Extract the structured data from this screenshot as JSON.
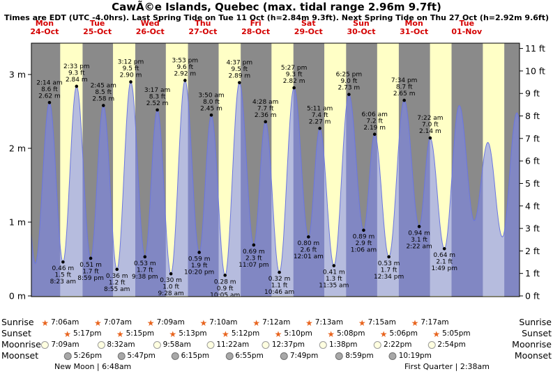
{
  "title": "CawÃ©e Islands, Quebec (max. tidal range 2.96m 9.7ft)",
  "subtitle": "Times are EDT (UTC -4.0hrs). Last Spring Tide on Tue 11 Oct (h=2.84m 9.3ft). Next Spring Tide on Thu 27 Oct (h=2.92m 9.6ft)",
  "colors": {
    "day_label": "#d40000",
    "night_band": "#8a8a8a",
    "day_band": "#ffffc6",
    "tide_fill": "rgba(122,133,242,0.55)",
    "tide_stroke": "#6b76e0",
    "moon_light": "#ffffe0",
    "moon_dark": "#a8a8a8",
    "star": "#e8641e"
  },
  "chart_data": {
    "type": "area",
    "title": "CawÃ©e Islands, Quebec tide curve",
    "days": [
      {
        "name": "Mon",
        "date": "24-Oct"
      },
      {
        "name": "Tue",
        "date": "25-Oct"
      },
      {
        "name": "Wed",
        "date": "26-Oct"
      },
      {
        "name": "Thu",
        "date": "27-Oct"
      },
      {
        "name": "Fri",
        "date": "28-Oct"
      },
      {
        "name": "Sat",
        "date": "29-Oct"
      },
      {
        "name": "Sun",
        "date": "30-Oct"
      },
      {
        "name": "Mon",
        "date": "31-Oct"
      },
      {
        "name": "Tue",
        "date": "01-Nov"
      }
    ],
    "y_axis_left": {
      "unit": "m",
      "tick_labels": [
        "0 m",
        "1 m",
        "2 m",
        "3 m"
      ],
      "tick_values": [
        0,
        1,
        2,
        3
      ]
    },
    "y_axis_right": {
      "unit": "ft",
      "tick_values": [
        0,
        1,
        2,
        3,
        4,
        5,
        6,
        7,
        8,
        9,
        10,
        11
      ]
    },
    "tide_events": [
      {
        "type": "high",
        "t": 2.23,
        "time": "2:14 am",
        "ft": "8.6 ft",
        "m": "2.62 m",
        "height_m": 2.62
      },
      {
        "type": "low",
        "t": 8.38,
        "time": "8:23 am",
        "ft": "1.5 ft",
        "m": "0.46 m",
        "height_m": 0.46
      },
      {
        "type": "high",
        "t": 14.55,
        "time": "2:33 pm",
        "ft": "9.3 ft",
        "m": "2.84 m",
        "height_m": 2.84
      },
      {
        "type": "low",
        "t": 20.98,
        "time": "8:59 pm",
        "ft": "1.7 ft",
        "m": "0.51 m",
        "height_m": 0.51
      },
      {
        "type": "high",
        "t": 26.75,
        "time": "2:45 am",
        "ft": "8.5 ft",
        "m": "2.58 m",
        "height_m": 2.58
      },
      {
        "type": "low",
        "t": 32.92,
        "time": "8:55 am",
        "ft": "1.2 ft",
        "m": "0.36 m",
        "height_m": 0.36
      },
      {
        "type": "high",
        "t": 39.2,
        "time": "3:12 pm",
        "ft": "9.5 ft",
        "m": "2.90 m",
        "height_m": 2.9
      },
      {
        "type": "low",
        "t": 45.63,
        "time": "9:38 pm",
        "ft": "1.7 ft",
        "m": "0.53 m",
        "height_m": 0.53
      },
      {
        "type": "high",
        "t": 51.28,
        "time": "3:17 am",
        "ft": "8.3 ft",
        "m": "2.52 m",
        "height_m": 2.52
      },
      {
        "type": "low",
        "t": 57.47,
        "time": "9:28 am",
        "ft": "1.0 ft",
        "m": "0.30 m",
        "height_m": 0.3
      },
      {
        "type": "high",
        "t": 63.88,
        "time": "3:53 pm",
        "ft": "9.6 ft",
        "m": "2.92 m",
        "height_m": 2.92
      },
      {
        "type": "low",
        "t": 70.33,
        "time": "10:20 pm",
        "ft": "1.9 ft",
        "m": "0.59 m",
        "height_m": 0.59
      },
      {
        "type": "high",
        "t": 75.83,
        "time": "3:50 am",
        "ft": "8.0 ft",
        "m": "2.45 m",
        "height_m": 2.45
      },
      {
        "type": "low",
        "t": 82.08,
        "time": "10:05 am",
        "ft": "0.9 ft",
        "m": "0.28 m",
        "height_m": 0.28
      },
      {
        "type": "high",
        "t": 88.62,
        "time": "4:37 pm",
        "ft": "9.5 ft",
        "m": "2.89 m",
        "height_m": 2.89
      },
      {
        "type": "low",
        "t": 95.12,
        "time": "11:07 pm",
        "ft": "2.3 ft",
        "m": "0.69 m",
        "height_m": 0.69
      },
      {
        "type": "high",
        "t": 100.47,
        "time": "4:28 am",
        "ft": "7.7 ft",
        "m": "2.36 m",
        "height_m": 2.36
      },
      {
        "type": "low",
        "t": 106.77,
        "time": "10:46 am",
        "ft": "1.1 ft",
        "m": "0.32 m",
        "height_m": 0.32
      },
      {
        "type": "high",
        "t": 113.45,
        "time": "5:27 pm",
        "ft": "9.3 ft",
        "m": "2.82 m",
        "height_m": 2.82
      },
      {
        "type": "low",
        "t": 120.02,
        "time": "12:01 am",
        "ft": "2.6 ft",
        "m": "0.80 m",
        "height_m": 0.8
      },
      {
        "type": "high",
        "t": 125.18,
        "time": "5:11 am",
        "ft": "7.4 ft",
        "m": "2.27 m",
        "height_m": 2.27
      },
      {
        "type": "low",
        "t": 131.58,
        "time": "11:35 am",
        "ft": "1.3 ft",
        "m": "0.41 m",
        "height_m": 0.41
      },
      {
        "type": "high",
        "t": 138.42,
        "time": "6:25 pm",
        "ft": "9.0 ft",
        "m": "2.73 m",
        "height_m": 2.73
      },
      {
        "type": "low",
        "t": 145.1,
        "time": "1:06 am",
        "ft": "2.9 ft",
        "m": "0.89 m",
        "height_m": 0.89
      },
      {
        "type": "high",
        "t": 150.1,
        "time": "6:06 am",
        "ft": "7.2 ft",
        "m": "2.19 m",
        "height_m": 2.19
      },
      {
        "type": "low",
        "t": 156.57,
        "time": "12:34 pm",
        "ft": "1.7 ft",
        "m": "0.53 m",
        "height_m": 0.53
      },
      {
        "type": "high",
        "t": 163.57,
        "time": "7:34 pm",
        "ft": "8.7 ft",
        "m": "2.65 m",
        "height_m": 2.65
      },
      {
        "type": "low",
        "t": 170.37,
        "time": "2:22 am",
        "ft": "3.1 ft",
        "m": "0.94 m",
        "height_m": 0.94
      },
      {
        "type": "high",
        "t": 175.37,
        "time": "7:22 am",
        "ft": "7.0 ft",
        "m": "2.14 m",
        "height_m": 2.14
      },
      {
        "type": "low",
        "t": 181.82,
        "time": "1:49 pm",
        "ft": "2.1 ft",
        "m": "0.64 m",
        "height_m": 0.64
      }
    ],
    "offscreen_curve_points": [
      {
        "t": -10.5,
        "h": 2.55
      },
      {
        "t": -4.2,
        "h": 0.44
      },
      {
        "t": 188.6,
        "h": 2.58
      },
      {
        "t": 195.4,
        "h": 1.02
      },
      {
        "t": 201.6,
        "h": 2.08
      },
      {
        "t": 208.2,
        "h": 0.8
      },
      {
        "t": 214.8,
        "h": 2.48
      },
      {
        "t": 221.0,
        "h": 1.0
      }
    ],
    "astro_rows": [
      {
        "id": "sunrise",
        "label": "Sunrise",
        "icon": "star",
        "entries": [
          {
            "day": 0,
            "time": "7:06am"
          },
          {
            "day": 1,
            "time": "7:07am"
          },
          {
            "day": 2,
            "time": "7:09am"
          },
          {
            "day": 3,
            "time": "7:10am"
          },
          {
            "day": 4,
            "time": "7:12am"
          },
          {
            "day": 5,
            "time": "7:13am"
          },
          {
            "day": 6,
            "time": "7:15am"
          },
          {
            "day": 7,
            "time": "7:17am"
          }
        ]
      },
      {
        "id": "sunset",
        "label": "Sunset",
        "icon": "star",
        "entries": [
          {
            "day": 0,
            "time": "5:17pm"
          },
          {
            "day": 1,
            "time": "5:15pm"
          },
          {
            "day": 2,
            "time": "5:13pm"
          },
          {
            "day": 3,
            "time": "5:12pm"
          },
          {
            "day": 4,
            "time": "5:10pm"
          },
          {
            "day": 5,
            "time": "5:08pm"
          },
          {
            "day": 6,
            "time": "5:06pm"
          },
          {
            "day": 7,
            "time": "5:05pm"
          }
        ]
      },
      {
        "id": "moonrise",
        "label": "Moonrise",
        "icon": "moon-light",
        "entries": [
          {
            "day": 0,
            "time": "7:09am"
          },
          {
            "day": 1,
            "time": "8:32am"
          },
          {
            "day": 2,
            "time": "9:58am"
          },
          {
            "day": 3,
            "time": "11:22am"
          },
          {
            "day": 4,
            "time": "12:37pm"
          },
          {
            "day": 5,
            "time": "1:38pm"
          },
          {
            "day": 6,
            "time": "2:22pm"
          },
          {
            "day": 7,
            "time": "2:54pm"
          }
        ]
      },
      {
        "id": "moonset",
        "label": "Moonset",
        "icon": "moon-dark",
        "entries": [
          {
            "day": 0,
            "time": "5:26pm"
          },
          {
            "day": 1,
            "time": "5:47pm"
          },
          {
            "day": 2,
            "time": "6:15pm"
          },
          {
            "day": 3,
            "time": "6:55pm"
          },
          {
            "day": 4,
            "time": "7:49pm"
          },
          {
            "day": 5,
            "time": "8:59pm"
          },
          {
            "day": 6,
            "time": "10:19pm"
          }
        ]
      }
    ],
    "moon_footer": {
      "left": "New Moon | 6:48am",
      "right": "First Quarter | 2:38am"
    }
  }
}
